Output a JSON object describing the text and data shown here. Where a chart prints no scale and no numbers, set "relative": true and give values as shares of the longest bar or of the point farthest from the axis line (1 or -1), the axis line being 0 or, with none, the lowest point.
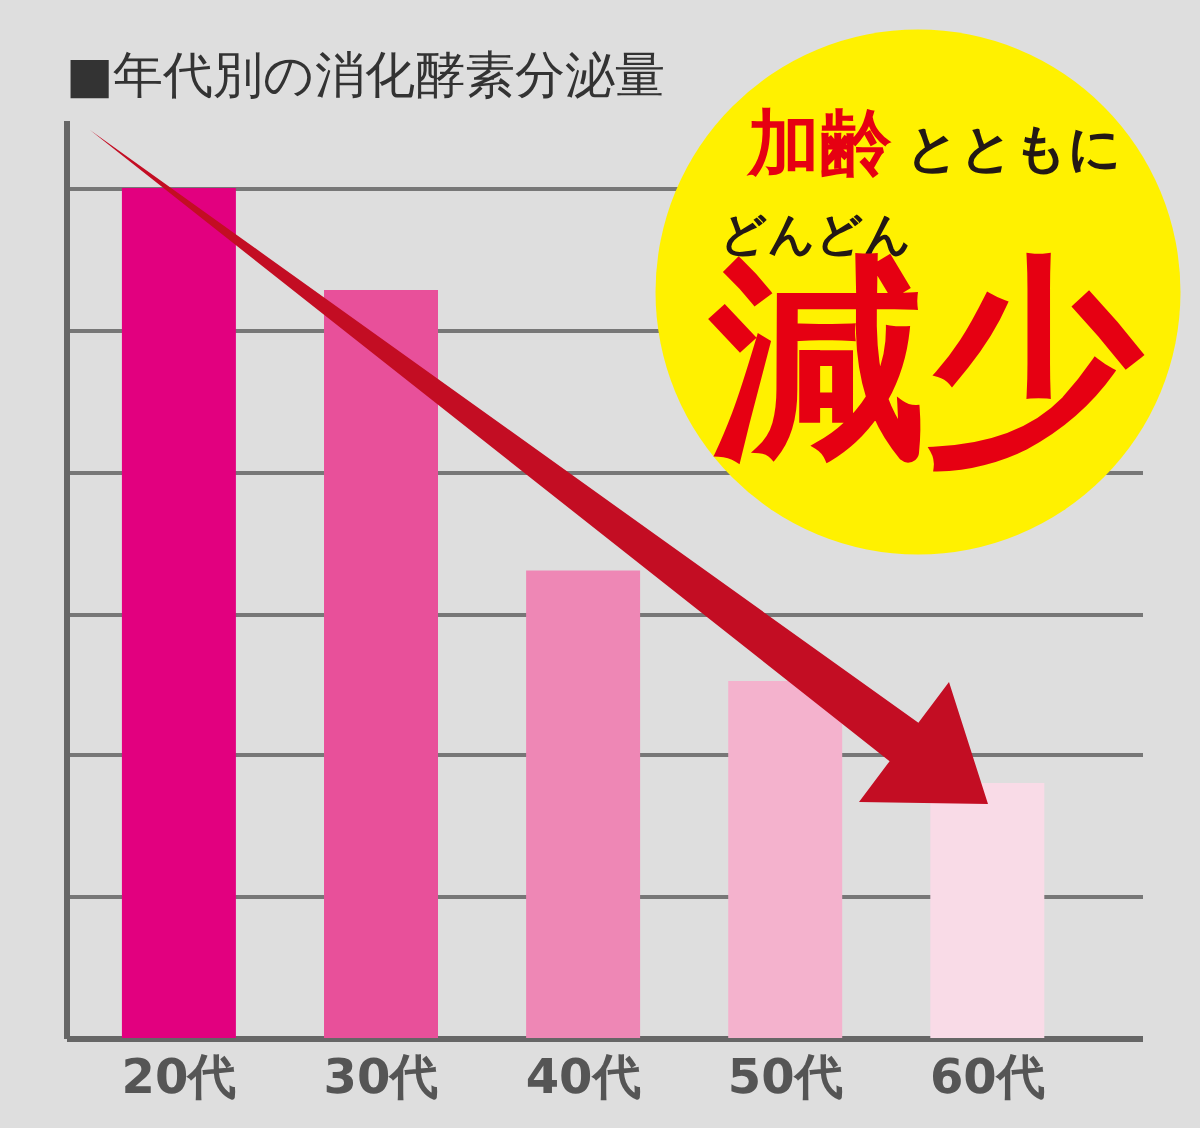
{
  "chart_data": {
    "type": "bar",
    "title": "■年代別の消化酵素分泌量",
    "categories": [
      "20代",
      "30代",
      "40代",
      "50代",
      "60代"
    ],
    "values": [
      1,
      0.88,
      0.55,
      0.42,
      0.3
    ],
    "colors": [
      "#e2007f",
      "#e8509a",
      "#ee87b5",
      "#f4b2cd",
      "#f9dbe7"
    ],
    "relative": true,
    "grid": "y",
    "tick_labels": "x",
    "annotations": [
      "加齢",
      "とともに",
      "どんどん",
      "減少"
    ]
  }
}
